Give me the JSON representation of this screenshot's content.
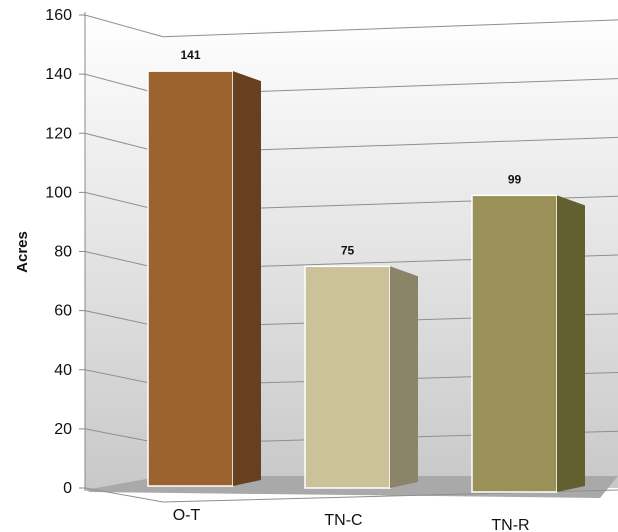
{
  "chart_data": {
    "type": "bar",
    "title": "",
    "xlabel": "",
    "ylabel": "Acres",
    "ylim": [
      0,
      160
    ],
    "yticks": [
      0,
      20,
      40,
      60,
      80,
      100,
      120,
      140,
      160
    ],
    "grid": true,
    "categories": [
      "O-T",
      "TN-C",
      "TN-R"
    ],
    "values": [
      141,
      75,
      99
    ],
    "data_labels": [
      "141",
      "75",
      "99"
    ],
    "colors": [
      "#9c6331",
      "#cbc299",
      "#9a9158"
    ],
    "side_colors": [
      "#66401f",
      "#8a8569",
      "#62602f"
    ]
  }
}
